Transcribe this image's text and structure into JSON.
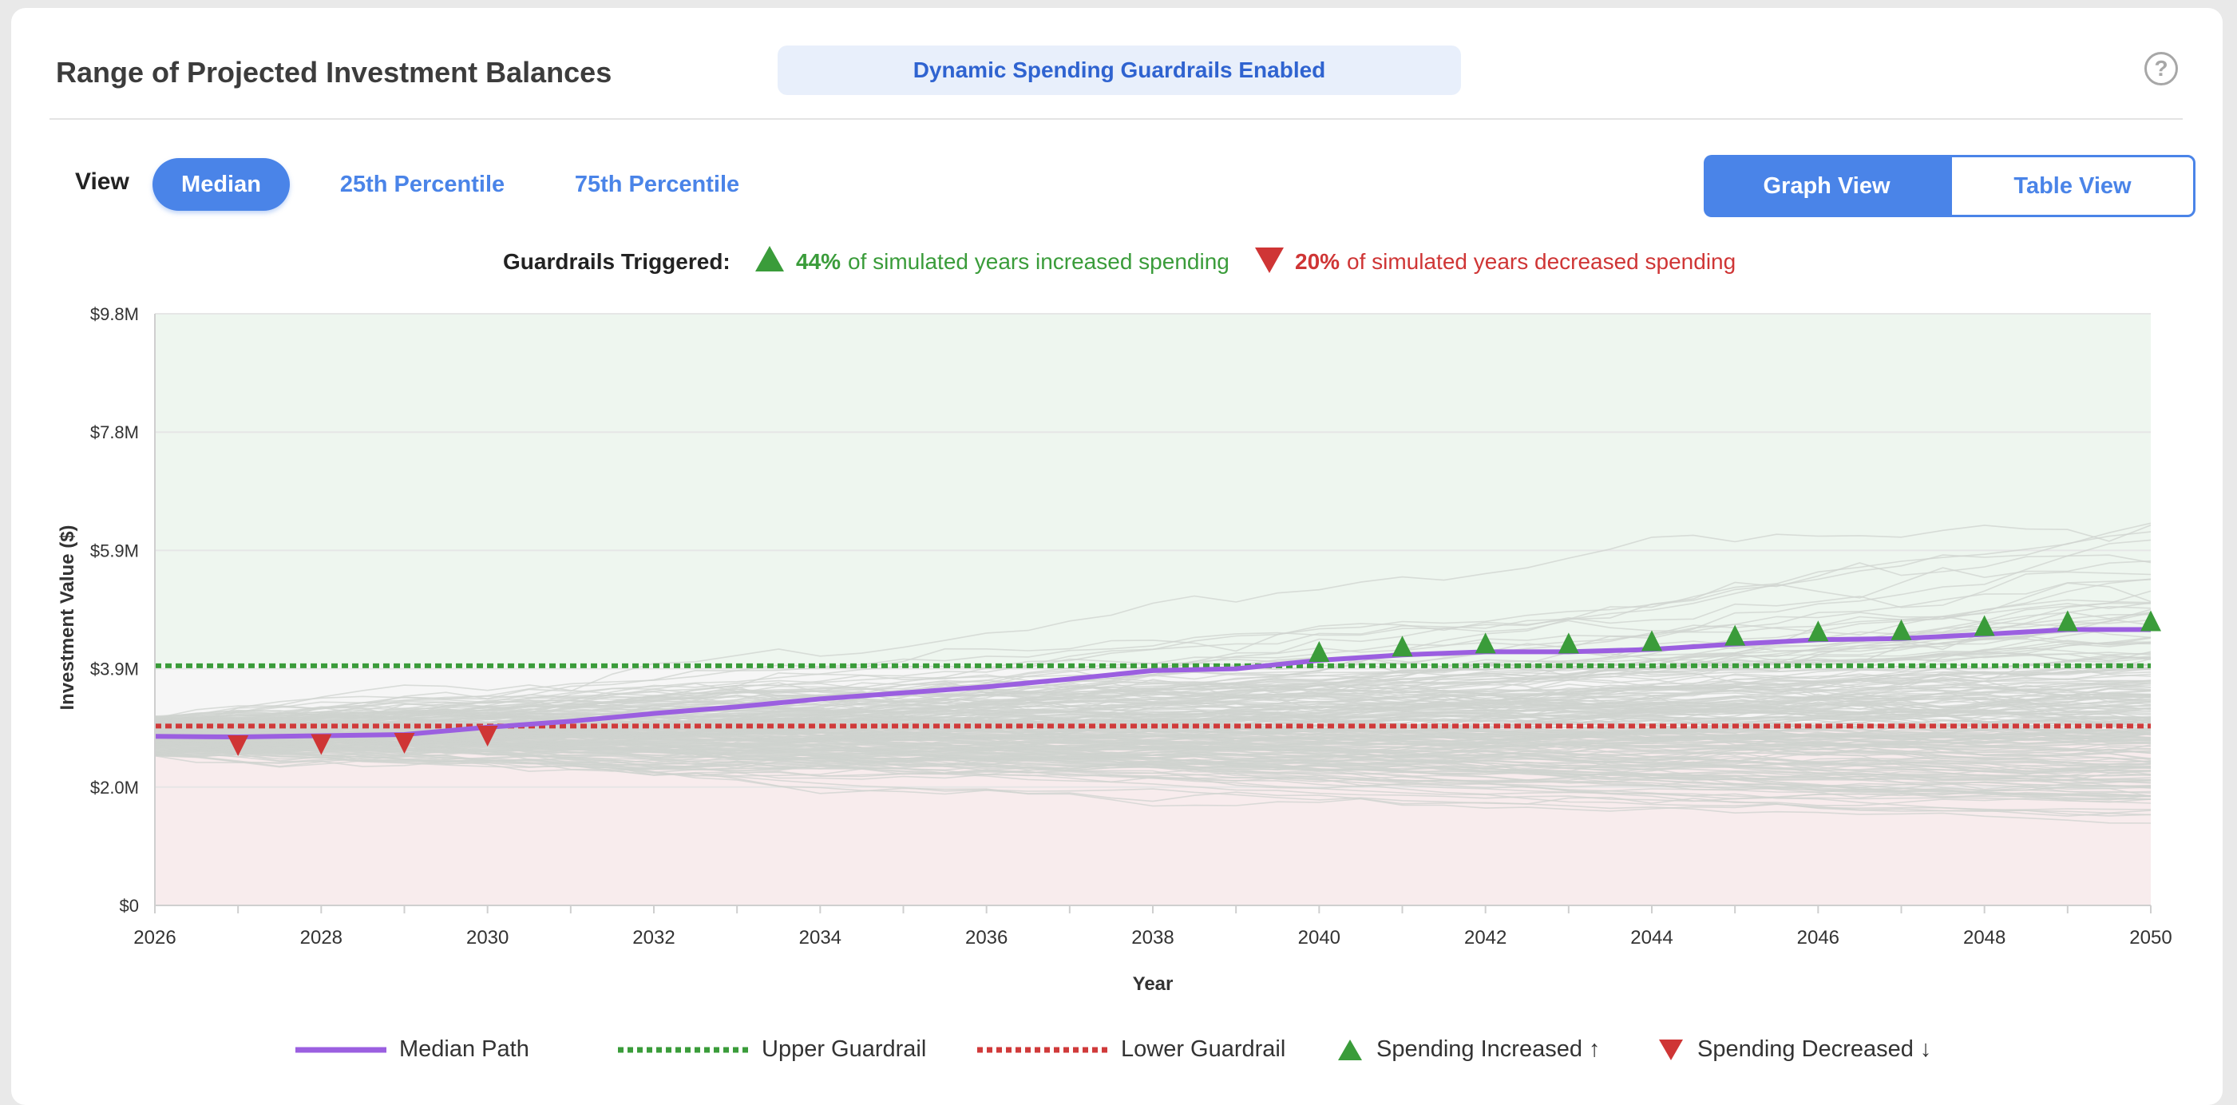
{
  "header": {
    "title": "Range of Projected Investment Balances",
    "banner": "Dynamic Spending Guardrails Enabled",
    "help_symbol": "?"
  },
  "view": {
    "label": "View",
    "options": [
      "Median",
      "25th Percentile",
      "75th Percentile"
    ],
    "active": "Median"
  },
  "toggle": {
    "graph": "Graph View",
    "table": "Table View",
    "active": "Graph View"
  },
  "guardrails": {
    "label": "Guardrails Triggered:",
    "increased_pct": "44%",
    "increased_text": "of simulated years increased spending",
    "decreased_pct": "20%",
    "decreased_text": "of simulated years decreased spending"
  },
  "legend": {
    "median": "Median Path",
    "upper": "Upper Guardrail",
    "lower": "Lower Guardrail",
    "increased": "Spending Increased ↑",
    "decreased": "Spending Decreased ↓"
  },
  "colors": {
    "accent": "#4a84e8",
    "median": "#9b5fe0",
    "upper": "#3a9c3a",
    "lower": "#d03a3a",
    "paths": "#cfd3cf",
    "upper_zone": "#eef6ef",
    "lower_zone": "#f8eced"
  },
  "chart_data": {
    "type": "line",
    "xlabel": "Year",
    "ylabel": "Investment Value ($)",
    "xlim": [
      2026,
      2050
    ],
    "ylim": [
      0,
      9.8
    ],
    "x_ticks": [
      2026,
      2028,
      2030,
      2032,
      2034,
      2036,
      2038,
      2040,
      2042,
      2044,
      2046,
      2048,
      2050
    ],
    "y_ticks": [
      {
        "value": 0,
        "label": "$0"
      },
      {
        "value": 1.96,
        "label": "$2.0M"
      },
      {
        "value": 3.92,
        "label": "$3.9M"
      },
      {
        "value": 5.88,
        "label": "$5.9M"
      },
      {
        "value": 7.84,
        "label": "$7.8M"
      },
      {
        "value": 9.8,
        "label": "$9.8M"
      }
    ],
    "upper_guardrail": 3.97,
    "lower_guardrail": 2.97,
    "median": {
      "x": [
        2026,
        2027,
        2028,
        2029,
        2030,
        2031,
        2032,
        2033,
        2034,
        2035,
        2036,
        2037,
        2038,
        2039,
        2040,
        2041,
        2042,
        2043,
        2044,
        2045,
        2046,
        2047,
        2048,
        2049,
        2050
      ],
      "y": [
        2.8,
        2.79,
        2.81,
        2.83,
        2.95,
        3.05,
        3.18,
        3.29,
        3.42,
        3.52,
        3.62,
        3.75,
        3.89,
        3.92,
        4.06,
        4.15,
        4.2,
        4.2,
        4.24,
        4.33,
        4.4,
        4.42,
        4.49,
        4.57,
        4.57
      ]
    },
    "increased_markers": [
      2040,
      2041,
      2042,
      2043,
      2044,
      2045,
      2046,
      2047,
      2048,
      2049,
      2050
    ],
    "decreased_markers": [
      2027,
      2028,
      2029,
      2030
    ],
    "simulation": {
      "paths": 220,
      "start_value": 2.8
    },
    "grid": true,
    "legend_position": "bottom"
  }
}
